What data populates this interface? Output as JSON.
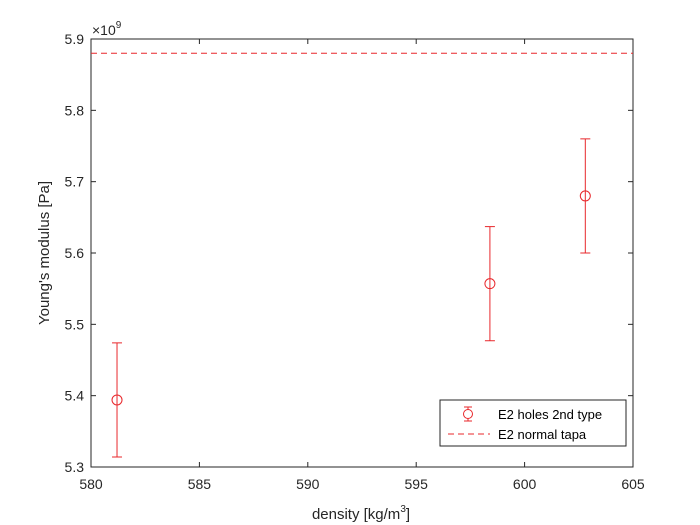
{
  "chart_data": {
    "type": "scatter",
    "xlabel": "density [kg/m",
    "xlabel_superscript": "3",
    "xlabel_suffix": "]",
    "ylabel": "Young's modulus [Pa]",
    "y_exponent_prefix": "×10",
    "y_exponent": "9",
    "xlim": [
      580,
      605
    ],
    "ylim": [
      5.3,
      5.9
    ],
    "y_scale_factor": 1000000000,
    "xticks": [
      580,
      585,
      590,
      595,
      600,
      605
    ],
    "yticks": [
      5.3,
      5.4,
      5.5,
      5.6,
      5.7,
      5.8,
      5.9
    ],
    "grid": false,
    "legend_position": "bottom-right",
    "series": [
      {
        "name": "E2 holes 2nd type",
        "style": "errorbar-circle",
        "color": "#e8272b",
        "x": [
          581.2,
          598.4,
          602.8
        ],
        "y": [
          5.394,
          5.557,
          5.68
        ],
        "err": [
          0.08,
          0.08,
          0.08
        ]
      },
      {
        "name": "E2 normal tapa",
        "style": "dashed-line",
        "color": "#e8272b",
        "y": 5.88
      }
    ]
  }
}
